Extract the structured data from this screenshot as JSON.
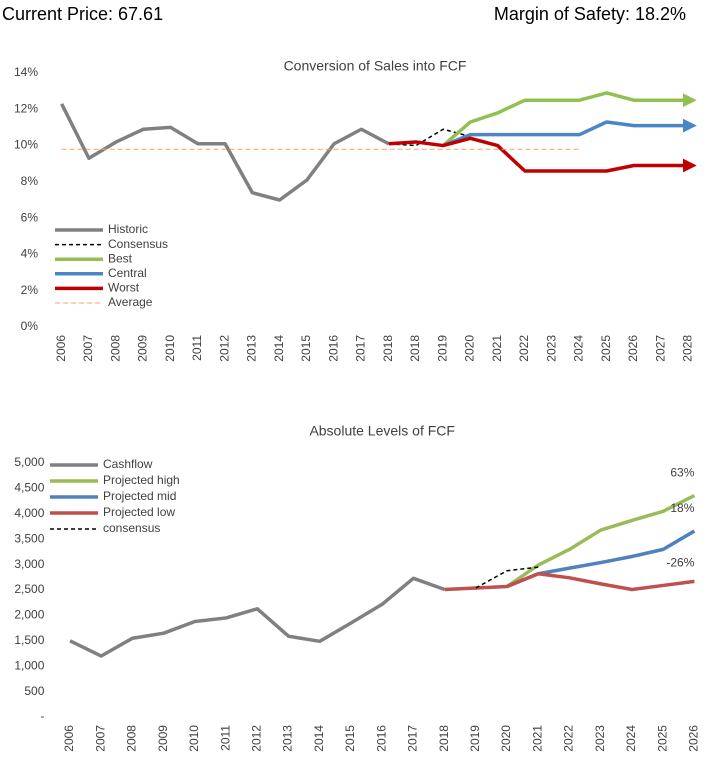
{
  "header": {
    "price": "Current Price: 67.61",
    "margin": "Margin of Safety: 18.2%"
  },
  "chart_data": [
    {
      "type": "line",
      "title": "Conversion of Sales into FCF",
      "legend": "lower left",
      "categories": [
        "2006",
        "2007",
        "2008",
        "2009",
        "2010",
        "2011",
        "2012",
        "2013",
        "2014",
        "2015",
        "2016",
        "2017",
        "2018",
        "2018",
        "2019",
        "2020",
        "2021",
        "2022",
        "2023",
        "2024",
        "2025",
        "2026",
        "2027",
        "2028"
      ],
      "ylim": [
        0,
        14
      ],
      "yticks": [
        {
          "value": 0,
          "label": "0%"
        },
        {
          "value": 2,
          "label": "2%"
        },
        {
          "value": 4,
          "label": "4%"
        },
        {
          "value": 6,
          "label": "6%"
        },
        {
          "value": 8,
          "label": "8%"
        },
        {
          "value": 10,
          "label": "10%"
        },
        {
          "value": 12,
          "label": "12%"
        },
        {
          "value": 14,
          "label": "14%"
        }
      ],
      "series": [
        {
          "name": "Historic",
          "color": "#808080",
          "width": 3.5,
          "values": [
            12.3,
            9.3,
            10.2,
            10.9,
            11.0,
            10.1,
            10.1,
            7.4,
            7.0,
            8.1,
            10.1,
            10.9,
            10.1,
            null,
            null,
            null,
            null,
            null,
            null,
            null,
            null,
            null,
            null,
            null
          ]
        },
        {
          "name": "Consensus",
          "color": "#000000",
          "width": 1.5,
          "dash": true,
          "values": [
            null,
            null,
            null,
            null,
            null,
            null,
            null,
            null,
            null,
            null,
            null,
            null,
            10.1,
            10.0,
            10.9,
            10.5,
            null,
            null,
            null,
            null,
            null,
            null,
            null,
            null
          ]
        },
        {
          "name": "Best",
          "color": "#92c050",
          "width": 3.5,
          "arrow": true,
          "values": [
            null,
            null,
            null,
            null,
            null,
            null,
            null,
            null,
            null,
            null,
            null,
            null,
            null,
            null,
            10.0,
            11.3,
            11.8,
            12.5,
            12.5,
            12.5,
            12.9,
            12.5,
            12.5,
            12.5
          ]
        },
        {
          "name": "Central",
          "color": "#4a86c6",
          "width": 3.5,
          "arrow": true,
          "values": [
            null,
            null,
            null,
            null,
            null,
            null,
            null,
            null,
            null,
            null,
            null,
            null,
            null,
            null,
            10.0,
            10.6,
            10.6,
            10.6,
            10.6,
            10.6,
            11.3,
            11.1,
            11.1,
            11.1
          ]
        },
        {
          "name": "Worst",
          "color": "#c00000",
          "width": 3.5,
          "arrow": true,
          "values": [
            null,
            null,
            null,
            null,
            null,
            null,
            null,
            null,
            null,
            null,
            null,
            null,
            10.1,
            10.2,
            10.0,
            10.4,
            10.0,
            8.6,
            8.6,
            8.6,
            8.6,
            8.9,
            8.9,
            8.9
          ]
        },
        {
          "name": "Average",
          "color": "#f4a26b",
          "width": 1,
          "dash": true,
          "values": [
            9.8,
            9.8,
            9.8,
            9.8,
            9.8,
            9.8,
            9.8,
            9.8,
            9.8,
            9.8,
            9.8,
            9.8,
            9.8,
            9.8,
            9.8,
            9.8,
            9.8,
            9.8,
            9.8,
            9.8,
            null,
            null,
            null,
            null
          ]
        }
      ]
    },
    {
      "type": "line",
      "title": "Absolute Levels of FCF",
      "legend": "upper left",
      "categories": [
        "2006",
        "2007",
        "2008",
        "2009",
        "2010",
        "2011",
        "2012",
        "2013",
        "2014",
        "2015",
        "2016",
        "2017",
        "2018",
        "2019",
        "2020",
        "2021",
        "2022",
        "2023",
        "2024",
        "2025",
        "2026"
      ],
      "ylim": [
        0,
        5000
      ],
      "yticks": [
        {
          "value": 0,
          "label": "-"
        },
        500,
        {
          "value": 1000,
          "label": "1,000"
        },
        {
          "value": 1500,
          "label": "1,500"
        },
        {
          "value": 2000,
          "label": "2,000"
        },
        {
          "value": 2500,
          "label": "2,500"
        },
        {
          "value": 3000,
          "label": "3,000"
        },
        {
          "value": 3500,
          "label": "3,500"
        },
        {
          "value": 4000,
          "label": "4,000"
        },
        {
          "value": 4500,
          "label": "4,500"
        },
        {
          "value": 5000,
          "label": "5,000"
        }
      ],
      "series": [
        {
          "name": "Cashflow",
          "color": "#808080",
          "width": 3.5,
          "values": [
            1500,
            1200,
            1550,
            1650,
            1880,
            1950,
            2130,
            1590,
            1490,
            1850,
            2220,
            2730,
            2510,
            null,
            null,
            null,
            null,
            null,
            null,
            null,
            null
          ]
        },
        {
          "name": "Projected high",
          "color": "#9bbb59",
          "width": 3.5,
          "values": [
            null,
            null,
            null,
            null,
            null,
            null,
            null,
            null,
            null,
            null,
            null,
            null,
            null,
            null,
            2570,
            2990,
            3300,
            3680,
            3870,
            4050,
            4360
          ]
        },
        {
          "name": "Projected mid",
          "color": "#4f81bd",
          "width": 3.5,
          "values": [
            null,
            null,
            null,
            null,
            null,
            null,
            null,
            null,
            null,
            null,
            null,
            null,
            null,
            null,
            2570,
            2820,
            2930,
            3040,
            3160,
            3300,
            3660
          ]
        },
        {
          "name": "Projected low",
          "color": "#c0504d",
          "width": 3.5,
          "values": [
            null,
            null,
            null,
            null,
            null,
            null,
            null,
            null,
            null,
            null,
            null,
            null,
            2510,
            2540,
            2570,
            2820,
            2740,
            2620,
            2510,
            2590,
            2670
          ]
        },
        {
          "name": "consensus",
          "color": "#000000",
          "width": 1.5,
          "dash": true,
          "values": [
            null,
            null,
            null,
            null,
            null,
            null,
            null,
            null,
            null,
            null,
            null,
            null,
            null,
            2540,
            2880,
            2950,
            null,
            null,
            null,
            null,
            null
          ]
        }
      ],
      "annotations": [
        "63%",
        "18%",
        "-26%"
      ]
    }
  ]
}
